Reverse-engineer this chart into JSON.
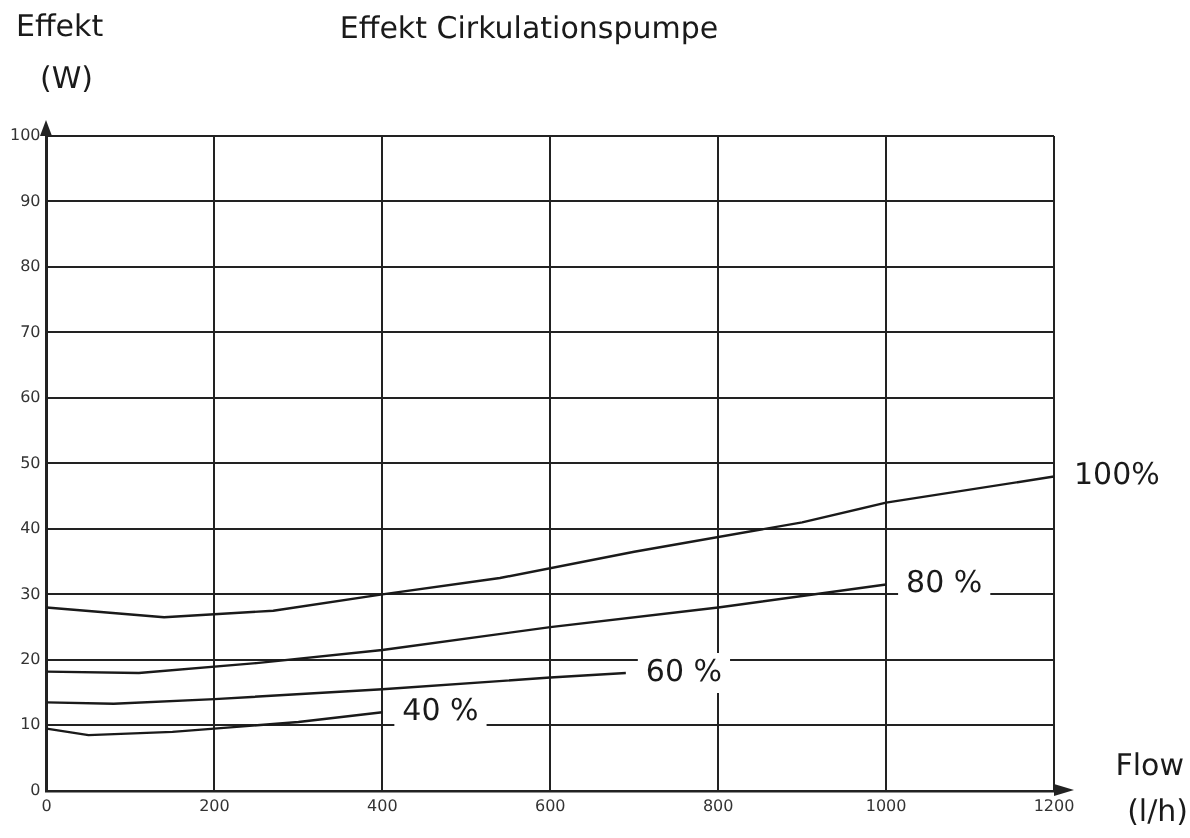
{
  "chart_data": {
    "type": "line",
    "title": "Effekt Cirkulationspumpe",
    "xlabel": "Flow (l/h)",
    "ylabel": "Effekt (W)",
    "xlim": [
      0,
      1200
    ],
    "xticks": [
      0,
      200,
      400,
      600,
      800,
      1000,
      1200
    ],
    "ylim": [
      0,
      100
    ],
    "yticks": [
      0,
      10,
      20,
      30,
      40,
      50,
      60,
      70,
      80,
      90,
      100
    ],
    "grid": true,
    "legend": false,
    "marker": "none",
    "line_style": "solid",
    "series": [
      {
        "name": "100%",
        "color": "#1a1a1a",
        "x": [
          0,
          140,
          270,
          400,
          540,
          700,
          900,
          1000,
          1200
        ],
        "values": [
          28,
          26.5,
          27.5,
          30,
          32.5,
          36.5,
          41,
          44,
          48
        ]
      },
      {
        "name": "80 %",
        "color": "#1a1a1a",
        "x": [
          0,
          110,
          250,
          400,
          600,
          800,
          1000
        ],
        "values": [
          18.2,
          18,
          19.5,
          21.5,
          25,
          28,
          31.5
        ]
      },
      {
        "name": "60 %",
        "color": "#1a1a1a",
        "x": [
          0,
          80,
          200,
          400,
          600,
          690
        ],
        "values": [
          13.5,
          13.3,
          14,
          15.5,
          17.3,
          18
        ]
      },
      {
        "name": "40 %",
        "color": "#1a1a1a",
        "x": [
          0,
          50,
          150,
          300,
          400
        ],
        "values": [
          9.5,
          8.5,
          9,
          10.5,
          12
        ]
      }
    ]
  }
}
